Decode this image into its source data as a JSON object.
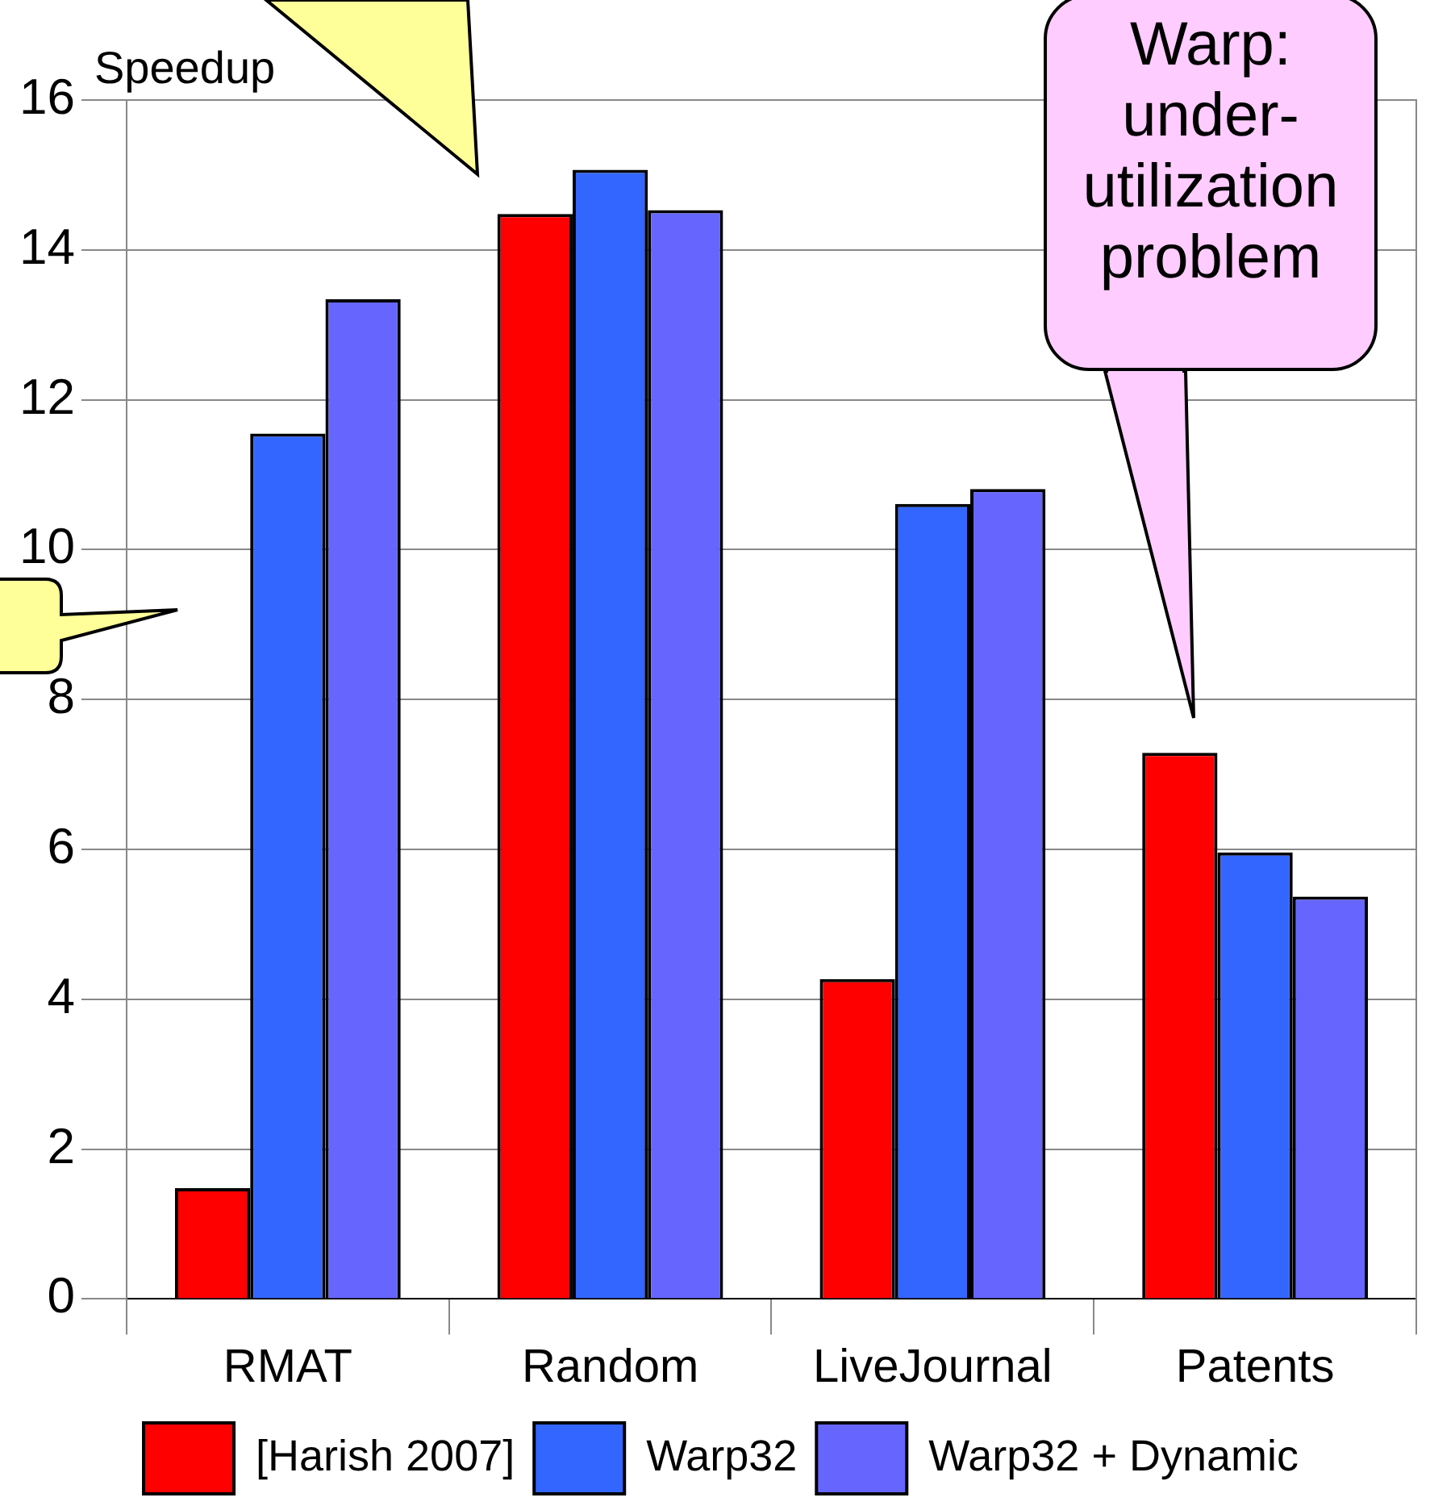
{
  "chart_data": {
    "type": "bar",
    "ylabel": "Speedup",
    "categories": [
      "RMAT",
      "Random",
      "LiveJournal",
      "Patents"
    ],
    "series": [
      {
        "name": "[Harish 2007]",
        "color": "#ff0000",
        "values": [
          1.48,
          14.48,
          4.27,
          7.29
        ]
      },
      {
        "name": "Warp32",
        "color": "#3366ff",
        "values": [
          11.55,
          15.07,
          10.61,
          5.96
        ]
      },
      {
        "name": "Warp32 + Dynamic",
        "color": "#6666ff",
        "values": [
          13.34,
          14.53,
          10.81,
          5.37
        ]
      }
    ],
    "ylim": [
      0,
      16
    ],
    "yticks": [
      0,
      2,
      4,
      6,
      8,
      10,
      12,
      14,
      16
    ],
    "grid": "y",
    "legend": "bottom",
    "annotations": [
      "Warp: under-utilization problem"
    ]
  }
}
